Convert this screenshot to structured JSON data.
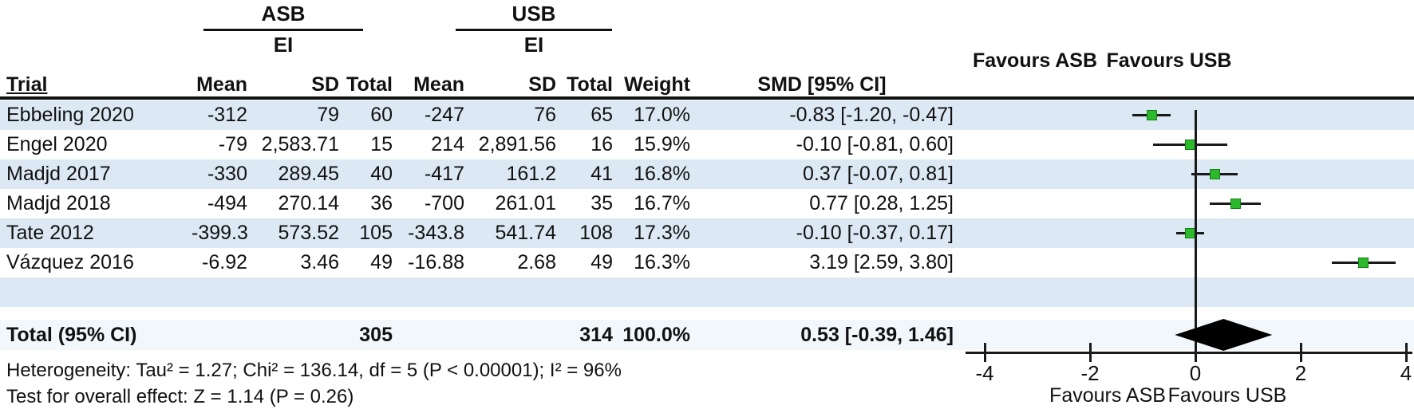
{
  "header": {
    "group_asb": {
      "label": "ASB",
      "sublabel": "EI"
    },
    "group_usb": {
      "label": "USB",
      "sublabel": "EI"
    },
    "columns": {
      "trial": "Trial",
      "mean": "Mean",
      "sd": "SD",
      "total": "Total",
      "weight": "Weight",
      "smd": "SMD [95% CI]"
    },
    "favours_asb": "Favours ASB",
    "favours_usb": "Favours USB"
  },
  "rows": [
    {
      "trial": "Ebbeling 2020",
      "asb_mean": "-312",
      "asb_sd": "79",
      "asb_total": "60",
      "usb_mean": "-247",
      "usb_sd": "76",
      "usb_total": "65",
      "weight": "17.0%",
      "smd_label": "-0.83 [-1.20, -0.47]",
      "smd": -0.83,
      "ci_low": -1.2,
      "ci_high": -0.47
    },
    {
      "trial": "Engel 2020",
      "asb_mean": "-79",
      "asb_sd": "2,583.71",
      "asb_total": "15",
      "usb_mean": "214",
      "usb_sd": "2,891.56",
      "usb_total": "16",
      "weight": "15.9%",
      "smd_label": "-0.10 [-0.81, 0.60]",
      "smd": -0.1,
      "ci_low": -0.81,
      "ci_high": 0.6
    },
    {
      "trial": "Madjd 2017",
      "asb_mean": "-330",
      "asb_sd": "289.45",
      "asb_total": "40",
      "usb_mean": "-417",
      "usb_sd": "161.2",
      "usb_total": "41",
      "weight": "16.8%",
      "smd_label": "0.37 [-0.07, 0.81]",
      "smd": 0.37,
      "ci_low": -0.07,
      "ci_high": 0.81
    },
    {
      "trial": "Madjd 2018",
      "asb_mean": "-494",
      "asb_sd": "270.14",
      "asb_total": "36",
      "usb_mean": "-700",
      "usb_sd": "261.01",
      "usb_total": "35",
      "weight": "16.7%",
      "smd_label": "0.77 [0.28, 1.25]",
      "smd": 0.77,
      "ci_low": 0.28,
      "ci_high": 1.25
    },
    {
      "trial": "Tate 2012",
      "asb_mean": "-399.3",
      "asb_sd": "573.52",
      "asb_total": "105",
      "usb_mean": "-343.8",
      "usb_sd": "541.74",
      "usb_total": "108",
      "weight": "17.3%",
      "smd_label": "-0.10 [-0.37, 0.17]",
      "smd": -0.1,
      "ci_low": -0.37,
      "ci_high": 0.17
    },
    {
      "trial": "Vázquez 2016",
      "asb_mean": "-6.92",
      "asb_sd": "3.46",
      "asb_total": "49",
      "usb_mean": "-16.88",
      "usb_sd": "2.68",
      "usb_total": "49",
      "weight": "16.3%",
      "smd_label": "3.19 [2.59, 3.80]",
      "smd": 3.19,
      "ci_low": 2.59,
      "ci_high": 3.8
    }
  ],
  "total_row": {
    "label": "Total (95% CI)",
    "asb_total": "305",
    "usb_total": "314",
    "weight": "100.0%",
    "smd_label": "0.53 [-0.39, 1.46]",
    "smd": 0.53,
    "ci_low": -0.39,
    "ci_high": 1.46
  },
  "footer": {
    "heterogeneity": "Heterogeneity: Tau² = 1.27; Chi² = 136.14, df = 5 (P < 0.00001); I² = 96%",
    "overall_effect": "Test for overall effect: Z = 1.14 (P = 0.26)"
  },
  "axis": {
    "ticks": [
      -4,
      -2,
      0,
      2,
      4
    ],
    "favours_left": "Favours ASB",
    "favours_right": "Favours USB"
  },
  "colors": {
    "row_stripe": "#dce9f5",
    "marker_green": "#2db92d",
    "diamond_black": "#000000"
  },
  "chart_data": {
    "type": "scatter",
    "subtype": "forest-plot",
    "studies": [
      "Ebbeling 2020",
      "Engel 2020",
      "Madjd 2017",
      "Madjd 2018",
      "Tate 2012",
      "Vázquez 2016"
    ],
    "smd": [
      -0.83,
      -0.1,
      0.37,
      0.77,
      -0.1,
      3.19
    ],
    "ci_low": [
      -1.2,
      -0.81,
      -0.07,
      0.28,
      -0.37,
      2.59
    ],
    "ci_high": [
      -0.47,
      0.6,
      0.81,
      1.25,
      0.17,
      3.8
    ],
    "weights_pct": [
      17.0,
      15.9,
      16.8,
      16.7,
      17.3,
      16.3
    ],
    "overall": {
      "smd": 0.53,
      "ci_low": -0.39,
      "ci_high": 1.46
    },
    "xlim": [
      -4,
      4
    ],
    "xticks": [
      -4,
      -2,
      0,
      2,
      4
    ],
    "xlabel_left": "Favours ASB",
    "xlabel_right": "Favours USB",
    "grid": false,
    "marker": "green-square",
    "overall_marker": "black-diamond"
  }
}
